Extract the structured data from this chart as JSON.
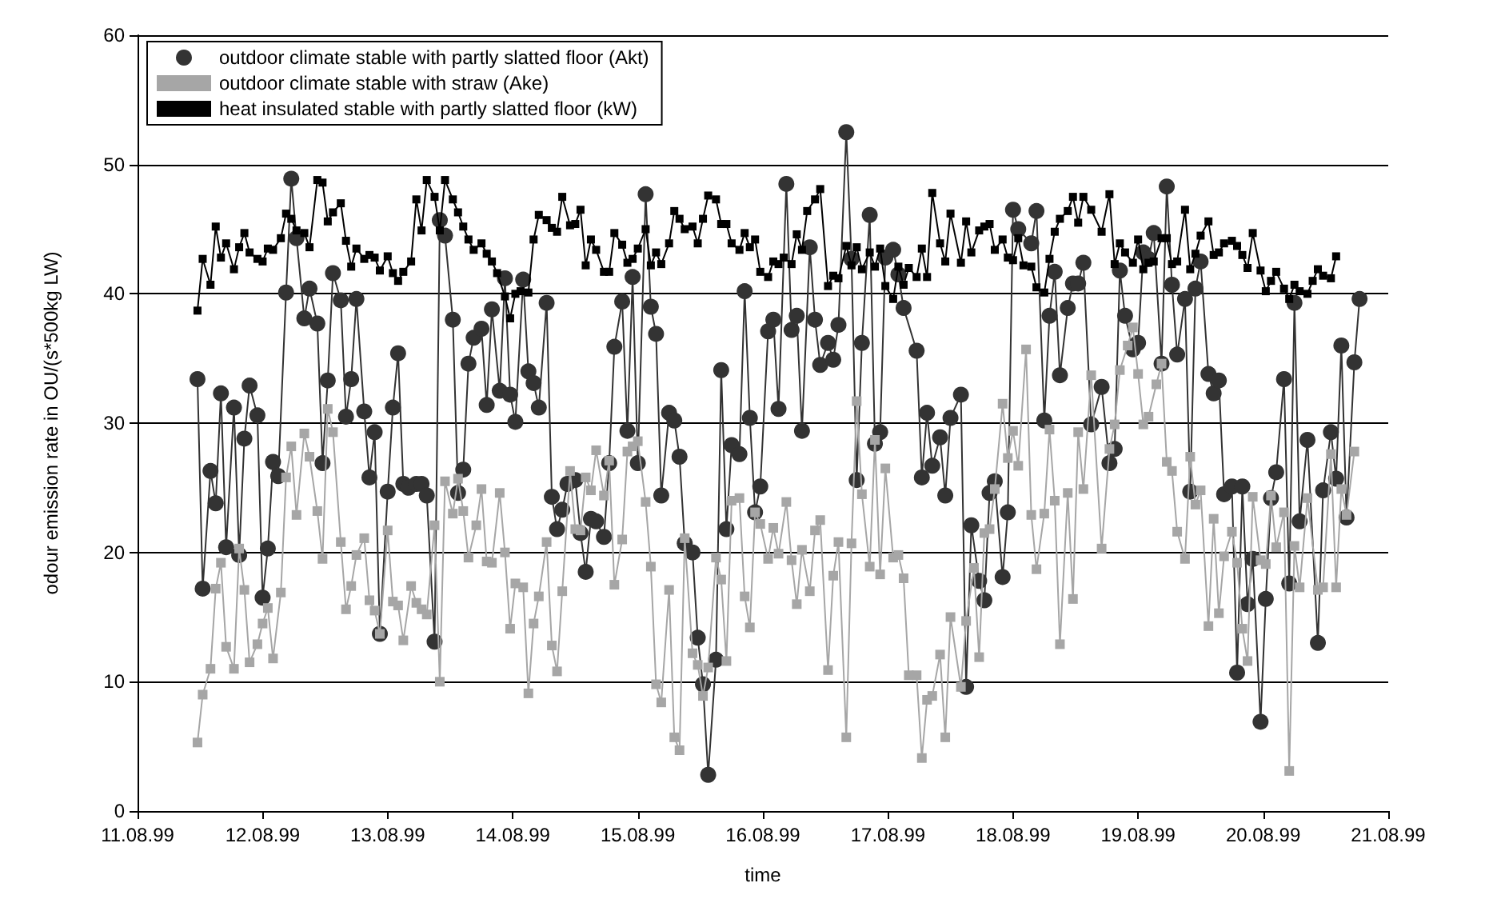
{
  "chart_data": {
    "type": "line",
    "xlabel": "time",
    "ylabel": "odour emission rate in OU/(s*500kg LW)",
    "xlim": [
      "1999-08-11",
      "1999-08-21"
    ],
    "xticks": [
      {
        "value": "1999-08-11",
        "label": "11.08.99"
      },
      {
        "value": "1999-08-12",
        "label": "12.08.99"
      },
      {
        "value": "1999-08-13",
        "label": "13.08.99"
      },
      {
        "value": "1999-08-14",
        "label": "14.08.99"
      },
      {
        "value": "1999-08-15",
        "label": "15.08.99"
      },
      {
        "value": "1999-08-16",
        "label": "16.08.99"
      },
      {
        "value": "1999-08-17",
        "label": "17.08.99"
      },
      {
        "value": "1999-08-18",
        "label": "18.08.99"
      },
      {
        "value": "1999-08-19",
        "label": "19.08.99"
      },
      {
        "value": "1999-08-20",
        "label": "20.08.99"
      },
      {
        "value": "1999-08-21",
        "label": "21.08.99"
      }
    ],
    "ylim": [
      0,
      60
    ],
    "yticks": [
      0,
      10,
      20,
      30,
      40,
      50,
      60
    ],
    "grid": "y",
    "legend": "top left",
    "line_style": "solid",
    "series": [
      {
        "name": "outdoor climate stable with partly slatted floor (Akt)",
        "color": "#333333",
        "marker": "circle",
        "x": [
          "1999-08-11T11:30",
          "1999-08-11T12:30",
          "1999-08-11T14:00",
          "1999-08-11T15:00",
          "1999-08-11T16:00",
          "1999-08-11T17:00",
          "1999-08-11T18:30",
          "1999-08-11T19:30",
          "1999-08-11T20:30",
          "1999-08-11T21:30",
          "1999-08-11T23:00",
          "1999-08-12T00:00",
          "1999-08-12T01:00",
          "1999-08-12T02:00",
          "1999-08-12T03:00",
          "1999-08-12T04:30",
          "1999-08-12T05:30",
          "1999-08-12T06:30",
          "1999-08-12T08:00",
          "1999-08-12T09:00",
          "1999-08-12T10:30",
          "1999-08-12T11:30",
          "1999-08-12T12:30",
          "1999-08-12T13:30",
          "1999-08-12T15:00",
          "1999-08-12T16:00",
          "1999-08-12T17:00",
          "1999-08-12T18:00",
          "1999-08-12T19:30",
          "1999-08-12T20:30",
          "1999-08-12T21:30",
          "1999-08-12T22:30",
          "1999-08-13T00:00",
          "1999-08-13T01:00",
          "1999-08-13T02:00",
          "1999-08-13T03:00",
          "1999-08-13T04:00",
          "1999-08-13T05:30",
          "1999-08-13T06:30",
          "1999-08-13T07:30",
          "1999-08-13T09:00",
          "1999-08-13T10:00",
          "1999-08-13T11:00",
          "1999-08-13T12:30",
          "1999-08-13T13:30",
          "1999-08-13T14:30",
          "1999-08-13T15:30",
          "1999-08-13T16:30",
          "1999-08-13T18:00",
          "1999-08-13T19:00",
          "1999-08-13T20:00",
          "1999-08-13T21:30",
          "1999-08-13T22:30",
          "1999-08-13T23:30",
          "1999-08-14T00:30",
          "1999-08-14T02:00",
          "1999-08-14T03:00",
          "1999-08-14T04:00",
          "1999-08-14T05:00",
          "1999-08-14T06:30",
          "1999-08-14T07:30",
          "1999-08-14T08:30",
          "1999-08-14T09:30",
          "1999-08-14T10:30",
          "1999-08-14T12:00",
          "1999-08-14T13:00",
          "1999-08-14T14:00",
          "1999-08-14T15:00",
          "1999-08-14T16:00",
          "1999-08-14T17:30",
          "1999-08-14T18:30",
          "1999-08-14T19:30",
          "1999-08-14T21:00",
          "1999-08-14T22:00",
          "1999-08-14T23:00",
          "1999-08-15T00:00",
          "1999-08-15T01:30",
          "1999-08-15T02:30",
          "1999-08-15T03:30",
          "1999-08-15T04:30",
          "1999-08-15T06:00",
          "1999-08-15T07:00",
          "1999-08-15T08:00",
          "1999-08-15T09:00",
          "1999-08-15T10:30",
          "1999-08-15T11:30",
          "1999-08-15T12:30",
          "1999-08-15T13:30",
          "1999-08-15T15:00",
          "1999-08-15T16:00",
          "1999-08-15T17:00",
          "1999-08-15T18:00",
          "1999-08-15T19:30",
          "1999-08-15T20:30",
          "1999-08-15T21:30",
          "1999-08-15T22:30",
          "1999-08-15T23:30",
          "1999-08-16T01:00",
          "1999-08-16T02:00",
          "1999-08-16T03:00",
          "1999-08-16T04:30",
          "1999-08-16T05:30",
          "1999-08-16T06:30",
          "1999-08-16T07:30",
          "1999-08-16T09:00",
          "1999-08-16T10:00",
          "1999-08-16T11:00",
          "1999-08-16T12:30",
          "1999-08-16T13:30",
          "1999-08-16T14:30",
          "1999-08-16T16:00",
          "1999-08-16T17:00",
          "1999-08-16T18:00",
          "1999-08-16T19:00",
          "1999-08-16T20:30",
          "1999-08-16T21:30",
          "1999-08-16T22:30",
          "1999-08-16T23:30",
          "1999-08-17T01:00",
          "1999-08-17T02:00",
          "1999-08-17T03:00",
          "1999-08-17T05:30",
          "1999-08-17T06:30",
          "1999-08-17T07:30",
          "1999-08-17T08:30",
          "1999-08-17T10:00",
          "1999-08-17T11:00",
          "1999-08-17T12:00",
          "1999-08-17T14:00",
          "1999-08-17T15:00",
          "1999-08-17T16:00",
          "1999-08-17T17:30",
          "1999-08-17T18:30",
          "1999-08-17T19:30",
          "1999-08-17T20:30",
          "1999-08-17T22:00",
          "1999-08-17T23:00",
          "1999-08-18T00:00",
          "1999-08-18T01:00",
          "1999-08-18T03:30",
          "1999-08-18T04:30",
          "1999-08-18T06:00",
          "1999-08-18T07:00",
          "1999-08-18T08:00",
          "1999-08-18T09:00",
          "1999-08-18T10:30",
          "1999-08-18T11:30",
          "1999-08-18T12:30",
          "1999-08-18T13:30",
          "1999-08-18T15:00",
          "1999-08-18T17:00",
          "1999-08-18T18:30",
          "1999-08-18T19:30",
          "1999-08-18T20:30",
          "1999-08-18T21:30",
          "1999-08-18T23:00",
          "1999-08-19T00:00",
          "1999-08-19T01:00",
          "1999-08-19T02:00",
          "1999-08-19T03:00",
          "1999-08-19T04:30",
          "1999-08-19T05:30",
          "1999-08-19T06:30",
          "1999-08-19T07:30",
          "1999-08-19T09:00",
          "1999-08-19T10:00",
          "1999-08-19T11:00",
          "1999-08-19T12:00",
          "1999-08-19T13:30",
          "1999-08-19T14:30",
          "1999-08-19T15:30",
          "1999-08-19T16:30",
          "1999-08-19T18:00",
          "1999-08-19T19:00",
          "1999-08-19T20:00",
          "1999-08-19T21:00",
          "1999-08-19T22:00",
          "1999-08-19T23:30",
          "1999-08-20T00:30",
          "1999-08-20T01:30",
          "1999-08-20T02:30",
          "1999-08-20T04:00",
          "1999-08-20T05:00",
          "1999-08-20T06:00",
          "1999-08-20T07:00",
          "1999-08-20T08:30",
          "1999-08-20T10:30",
          "1999-08-20T11:30",
          "1999-08-20T13:00",
          "1999-08-20T14:00",
          "1999-08-20T15:00",
          "1999-08-20T16:00",
          "1999-08-20T17:30",
          "1999-08-20T18:30"
        ],
        "values": [
          33.4,
          17.2,
          26.3,
          23.8,
          32.3,
          20.4,
          31.2,
          19.8,
          28.8,
          32.9,
          30.6,
          16.5,
          20.3,
          27.0,
          25.9,
          40.1,
          48.9,
          44.3,
          38.1,
          40.4,
          37.7,
          26.9,
          33.3,
          41.6,
          39.5,
          30.5,
          33.4,
          39.6,
          30.9,
          25.8,
          29.3,
          13.7,
          24.7,
          31.2,
          35.4,
          25.3,
          25.0,
          25.3,
          25.3,
          24.4,
          13.1,
          45.7,
          44.5,
          38.0,
          24.6,
          26.4,
          34.6,
          36.6,
          37.3,
          31.4,
          38.8,
          32.5,
          41.2,
          32.2,
          30.1,
          41.1,
          34.0,
          33.1,
          31.2,
          39.3,
          24.3,
          21.8,
          23.3,
          25.3,
          25.6,
          21.5,
          18.5,
          22.6,
          22.4,
          21.2,
          26.9,
          35.9,
          39.4,
          29.4,
          41.3,
          26.9,
          47.7,
          39.0,
          36.9,
          24.4,
          30.8,
          30.2,
          27.4,
          20.7,
          20.0,
          13.4,
          9.8,
          2.8,
          11.7,
          34.1,
          21.8,
          28.3,
          27.6,
          40.2,
          30.4,
          23.1,
          25.1,
          37.1,
          38.0,
          31.1,
          48.5,
          37.2,
          38.3,
          29.4,
          43.6,
          38.0,
          34.5,
          36.2,
          34.9,
          37.6,
          52.5,
          42.7,
          25.6,
          36.2,
          46.1,
          28.4,
          29.3,
          42.8,
          43.4,
          41.5,
          38.9,
          35.6,
          25.8,
          30.8,
          26.7,
          28.9,
          24.4,
          30.4,
          32.2,
          9.6,
          22.1,
          17.8,
          16.3,
          24.6,
          25.5,
          18.1,
          23.1,
          46.5,
          45.0,
          43.9,
          46.4,
          30.2,
          38.3,
          41.7,
          33.7,
          38.9,
          40.8,
          40.8,
          42.4,
          29.9,
          32.8,
          26.9,
          28.0,
          41.8,
          38.3,
          35.7,
          36.2,
          43.2,
          42.7,
          44.7,
          34.6,
          48.3,
          40.7,
          35.3,
          39.6,
          24.7,
          40.4,
          42.5,
          33.8,
          32.3,
          33.3,
          24.5,
          25.1,
          10.7,
          25.1,
          16.0,
          19.5,
          6.9,
          16.4,
          24.2,
          26.2,
          33.4,
          17.6,
          39.3,
          22.4,
          28.7,
          13.0,
          24.8,
          29.3,
          25.7,
          36.0,
          22.7,
          34.7,
          39.6
        ]
      },
      {
        "name": "outdoor climate stable with straw (Ake)",
        "color": "#a6a6a6",
        "marker": "square",
        "x": [
          "1999-08-11T11:30",
          "1999-08-11T12:30",
          "1999-08-11T14:00",
          "1999-08-11T15:00",
          "1999-08-11T16:00",
          "1999-08-11T17:00",
          "1999-08-11T18:30",
          "1999-08-11T19:30",
          "1999-08-11T20:30",
          "1999-08-11T21:30",
          "1999-08-11T23:00",
          "1999-08-12T00:00",
          "1999-08-12T01:00",
          "1999-08-12T02:00",
          "1999-08-12T03:30",
          "1999-08-12T04:30",
          "1999-08-12T05:30",
          "1999-08-12T06:30",
          "1999-08-12T08:00",
          "1999-08-12T09:00",
          "1999-08-12T10:30",
          "1999-08-12T11:30",
          "1999-08-12T12:30",
          "1999-08-12T13:30",
          "1999-08-12T15:00",
          "1999-08-12T16:00",
          "1999-08-12T17:00",
          "1999-08-12T18:00",
          "1999-08-12T19:30",
          "1999-08-12T20:30",
          "1999-08-12T21:30",
          "1999-08-12T22:30",
          "1999-08-13T00:00",
          "1999-08-13T01:00",
          "1999-08-13T02:00",
          "1999-08-13T03:00",
          "1999-08-13T04:30",
          "1999-08-13T05:30",
          "1999-08-13T06:30",
          "1999-08-13T07:30",
          "1999-08-13T09:00",
          "1999-08-13T10:00",
          "1999-08-13T11:00",
          "1999-08-13T12:30",
          "1999-08-13T13:30",
          "1999-08-13T14:30",
          "1999-08-13T15:30",
          "1999-08-13T17:00",
          "1999-08-13T18:00",
          "1999-08-13T19:00",
          "1999-08-13T20:00",
          "1999-08-13T21:30",
          "1999-08-13T22:30",
          "1999-08-13T23:30",
          "1999-08-14T00:30",
          "1999-08-14T02:00",
          "1999-08-14T03:00",
          "1999-08-14T04:00",
          "1999-08-14T05:00",
          "1999-08-14T06:30",
          "1999-08-14T07:30",
          "1999-08-14T08:30",
          "1999-08-14T09:30",
          "1999-08-14T11:00",
          "1999-08-14T12:00",
          "1999-08-14T13:00",
          "1999-08-14T14:00",
          "1999-08-14T15:00",
          "1999-08-14T16:00",
          "1999-08-14T17:30",
          "1999-08-14T18:30",
          "1999-08-14T19:30",
          "1999-08-14T21:00",
          "1999-08-14T22:00",
          "1999-08-14T23:00",
          "1999-08-15T00:00",
          "1999-08-15T01:30",
          "1999-08-15T02:30",
          "1999-08-15T03:30",
          "1999-08-15T04:30",
          "1999-08-15T06:00",
          "1999-08-15T07:00",
          "1999-08-15T08:00",
          "1999-08-15T09:00",
          "1999-08-15T10:30",
          "1999-08-15T11:30",
          "1999-08-15T12:30",
          "1999-08-15T13:30",
          "1999-08-15T15:00",
          "1999-08-15T16:00",
          "1999-08-15T17:00",
          "1999-08-15T18:00",
          "1999-08-15T19:30",
          "1999-08-15T20:30",
          "1999-08-15T21:30",
          "1999-08-15T22:30",
          "1999-08-15T23:30",
          "1999-08-16T01:00",
          "1999-08-16T02:00",
          "1999-08-16T03:00",
          "1999-08-16T04:30",
          "1999-08-16T05:30",
          "1999-08-16T06:30",
          "1999-08-16T07:30",
          "1999-08-16T09:00",
          "1999-08-16T10:00",
          "1999-08-16T11:00",
          "1999-08-16T12:30",
          "1999-08-16T13:30",
          "1999-08-16T14:30",
          "1999-08-16T16:00",
          "1999-08-16T17:00",
          "1999-08-16T18:00",
          "1999-08-16T19:00",
          "1999-08-16T20:30",
          "1999-08-16T21:30",
          "1999-08-16T22:30",
          "1999-08-16T23:30",
          "1999-08-17T01:00",
          "1999-08-17T02:00",
          "1999-08-17T03:00",
          "1999-08-17T04:00",
          "1999-08-17T05:30",
          "1999-08-17T06:30",
          "1999-08-17T07:30",
          "1999-08-17T08:30",
          "1999-08-17T10:00",
          "1999-08-17T11:00",
          "1999-08-17T12:00",
          "1999-08-17T14:00",
          "1999-08-17T15:00",
          "1999-08-17T16:30",
          "1999-08-17T17:30",
          "1999-08-17T18:30",
          "1999-08-17T19:30",
          "1999-08-17T20:30",
          "1999-08-17T22:00",
          "1999-08-17T23:00",
          "1999-08-18T00:00",
          "1999-08-18T01:00",
          "1999-08-18T02:30",
          "1999-08-18T03:30",
          "1999-08-18T04:30",
          "1999-08-18T06:00",
          "1999-08-18T07:00",
          "1999-08-18T08:00",
          "1999-08-18T09:00",
          "1999-08-18T10:30",
          "1999-08-18T11:30",
          "1999-08-18T12:30",
          "1999-08-18T13:30",
          "1999-08-18T15:00",
          "1999-08-18T17:00",
          "1999-08-18T18:30",
          "1999-08-18T19:30",
          "1999-08-18T20:30",
          "1999-08-18T22:00",
          "1999-08-18T23:00",
          "1999-08-19T00:00",
          "1999-08-19T01:00",
          "1999-08-19T02:00",
          "1999-08-19T03:30",
          "1999-08-19T04:30",
          "1999-08-19T05:30",
          "1999-08-19T06:30",
          "1999-08-19T07:30",
          "1999-08-19T09:00",
          "1999-08-19T10:00",
          "1999-08-19T11:00",
          "1999-08-19T12:00",
          "1999-08-19T13:30",
          "1999-08-19T14:30",
          "1999-08-19T15:30",
          "1999-08-19T16:30",
          "1999-08-19T18:00",
          "1999-08-19T19:00",
          "1999-08-19T20:00",
          "1999-08-19T21:00",
          "1999-08-19T22:00",
          "1999-08-19T23:30",
          "1999-08-20T00:30",
          "1999-08-20T01:30",
          "1999-08-20T02:30",
          "1999-08-20T04:00",
          "1999-08-20T05:00",
          "1999-08-20T06:00",
          "1999-08-20T07:00",
          "1999-08-20T08:30",
          "1999-08-20T10:30",
          "1999-08-20T11:30",
          "1999-08-20T13:00",
          "1999-08-20T14:00",
          "1999-08-20T15:00",
          "1999-08-20T16:00",
          "1999-08-20T17:30"
        ],
        "values": [
          5.3,
          9.0,
          11.0,
          17.2,
          19.2,
          12.7,
          11.0,
          20.3,
          17.1,
          11.5,
          12.9,
          14.5,
          15.7,
          11.8,
          16.9,
          25.8,
          28.2,
          22.9,
          29.2,
          27.4,
          23.2,
          19.5,
          31.1,
          29.3,
          20.8,
          15.6,
          17.4,
          19.8,
          21.1,
          16.3,
          15.5,
          13.7,
          21.7,
          16.2,
          15.9,
          13.2,
          17.4,
          16.1,
          15.6,
          15.2,
          22.1,
          10.0,
          25.5,
          23.0,
          25.7,
          23.2,
          19.6,
          22.1,
          24.9,
          19.3,
          19.2,
          24.6,
          20.0,
          14.1,
          17.6,
          17.3,
          9.1,
          14.5,
          16.6,
          20.8,
          12.8,
          10.8,
          17.0,
          26.3,
          21.8,
          21.7,
          25.8,
          24.8,
          27.9,
          24.4,
          27.1,
          17.5,
          21.0,
          27.8,
          28.2,
          28.6,
          23.9,
          18.9,
          9.8,
          8.4,
          17.1,
          5.7,
          4.7,
          21.1,
          12.2,
          11.3,
          8.9,
          11.1,
          19.6,
          17.9,
          11.6,
          24.0,
          24.2,
          16.6,
          14.2,
          23.1,
          22.2,
          19.5,
          21.9,
          19.9,
          23.9,
          19.4,
          16.0,
          20.2,
          17.0,
          21.7,
          22.5,
          10.9,
          18.2,
          20.8,
          5.7,
          20.7,
          31.7,
          24.5,
          18.9,
          28.7,
          18.3,
          26.5,
          19.6,
          19.8,
          18.0,
          10.5,
          10.5,
          4.1,
          8.6,
          8.9,
          12.1,
          5.7,
          15.0,
          9.6,
          14.7,
          18.8,
          11.9,
          21.5,
          21.8,
          24.9,
          31.5,
          27.3,
          29.4,
          26.7,
          35.7,
          22.9,
          18.7,
          23.0,
          29.5,
          24.0,
          12.9,
          24.6,
          16.4,
          29.3,
          24.9,
          33.7,
          20.3,
          28.0,
          29.9,
          34.1,
          36.0,
          37.4,
          33.8,
          29.9,
          30.5,
          33.0,
          34.6,
          27.0,
          26.3,
          21.6,
          19.5,
          27.4,
          23.7,
          24.8,
          14.3,
          22.6,
          15.3,
          19.7,
          21.6,
          19.2,
          14.1,
          11.6,
          24.3,
          19.4,
          19.1,
          24.4,
          20.4,
          23.1,
          3.1,
          20.5,
          17.3,
          24.2,
          17.1,
          17.3,
          27.6,
          17.3,
          24.9,
          22.9,
          27.8
        ]
      },
      {
        "name": "heat insulated stable with partly slatted floor (kW)",
        "color": "#000000",
        "marker": "square",
        "x": [
          "1999-08-11T11:30",
          "1999-08-11T12:30",
          "1999-08-11T14:00",
          "1999-08-11T15:00",
          "1999-08-11T16:00",
          "1999-08-11T17:00",
          "1999-08-11T18:30",
          "1999-08-11T19:30",
          "1999-08-11T20:30",
          "1999-08-11T21:30",
          "1999-08-11T23:00",
          "1999-08-12T00:00",
          "1999-08-12T01:00",
          "1999-08-12T02:00",
          "1999-08-12T03:30",
          "1999-08-12T04:30",
          "1999-08-12T05:30",
          "1999-08-12T06:30",
          "1999-08-12T08:00",
          "1999-08-12T09:00",
          "1999-08-12T10:30",
          "1999-08-12T11:30",
          "1999-08-12T12:30",
          "1999-08-12T13:30",
          "1999-08-12T15:00",
          "1999-08-12T16:00",
          "1999-08-12T17:00",
          "1999-08-12T18:00",
          "1999-08-12T19:30",
          "1999-08-12T20:30",
          "1999-08-12T21:30",
          "1999-08-12T22:30",
          "1999-08-13T00:00",
          "1999-08-13T01:00",
          "1999-08-13T02:00",
          "1999-08-13T03:00",
          "1999-08-13T04:30",
          "1999-08-13T05:30",
          "1999-08-13T06:30",
          "1999-08-13T07:30",
          "1999-08-13T09:00",
          "1999-08-13T10:00",
          "1999-08-13T11:00",
          "1999-08-13T12:30",
          "1999-08-13T13:30",
          "1999-08-13T14:30",
          "1999-08-13T15:30",
          "1999-08-13T16:30",
          "1999-08-13T18:00",
          "1999-08-13T19:00",
          "1999-08-13T20:00",
          "1999-08-13T21:00",
          "1999-08-13T22:30",
          "1999-08-13T23:30",
          "1999-08-14T00:30",
          "1999-08-14T01:30",
          "1999-08-14T03:00",
          "1999-08-14T04:00",
          "1999-08-14T05:00",
          "1999-08-14T06:30",
          "1999-08-14T07:30",
          "1999-08-14T08:30",
          "1999-08-14T09:30",
          "1999-08-14T11:00",
          "1999-08-14T12:00",
          "1999-08-14T13:00",
          "1999-08-14T14:00",
          "1999-08-14T15:00",
          "1999-08-14T16:00",
          "1999-08-14T17:30",
          "1999-08-14T18:30",
          "1999-08-14T19:30",
          "1999-08-14T21:00",
          "1999-08-14T22:00",
          "1999-08-14T23:00",
          "1999-08-15T00:00",
          "1999-08-15T01:30",
          "1999-08-15T02:30",
          "1999-08-15T03:30",
          "1999-08-15T04:30",
          "1999-08-15T06:00",
          "1999-08-15T07:00",
          "1999-08-15T08:00",
          "1999-08-15T09:00",
          "1999-08-15T10:30",
          "1999-08-15T11:30",
          "1999-08-15T12:30",
          "1999-08-15T13:30",
          "1999-08-15T15:00",
          "1999-08-15T16:00",
          "1999-08-15T17:00",
          "1999-08-15T18:00",
          "1999-08-15T19:30",
          "1999-08-15T20:30",
          "1999-08-15T21:30",
          "1999-08-15T22:30",
          "1999-08-15T23:30",
          "1999-08-16T01:00",
          "1999-08-16T02:00",
          "1999-08-16T03:00",
          "1999-08-16T04:00",
          "1999-08-16T05:30",
          "1999-08-16T06:30",
          "1999-08-16T07:30",
          "1999-08-16T08:30",
          "1999-08-16T10:00",
          "1999-08-16T11:00",
          "1999-08-16T12:30",
          "1999-08-16T13:30",
          "1999-08-16T14:30",
          "1999-08-16T16:00",
          "1999-08-16T17:00",
          "1999-08-16T18:00",
          "1999-08-16T19:00",
          "1999-08-16T20:30",
          "1999-08-16T21:30",
          "1999-08-16T22:30",
          "1999-08-16T23:30",
          "1999-08-17T01:00",
          "1999-08-17T02:00",
          "1999-08-17T03:00",
          "1999-08-17T04:00",
          "1999-08-17T05:30",
          "1999-08-17T06:30",
          "1999-08-17T07:30",
          "1999-08-17T08:30",
          "1999-08-17T10:00",
          "1999-08-17T11:00",
          "1999-08-17T12:00",
          "1999-08-17T14:00",
          "1999-08-17T15:00",
          "1999-08-17T16:00",
          "1999-08-17T17:30",
          "1999-08-17T18:30",
          "1999-08-17T19:30",
          "1999-08-17T20:30",
          "1999-08-17T22:00",
          "1999-08-17T23:00",
          "1999-08-18T00:00",
          "1999-08-18T01:00",
          "1999-08-18T02:00",
          "1999-08-18T03:30",
          "1999-08-18T04:30",
          "1999-08-18T06:00",
          "1999-08-18T07:00",
          "1999-08-18T08:00",
          "1999-08-18T09:00",
          "1999-08-18T10:30",
          "1999-08-18T11:30",
          "1999-08-18T12:30",
          "1999-08-18T13:30",
          "1999-08-18T15:00",
          "1999-08-18T17:00",
          "1999-08-18T18:30",
          "1999-08-18T19:30",
          "1999-08-18T20:30",
          "1999-08-18T21:30",
          "1999-08-18T23:00",
          "1999-08-19T00:00",
          "1999-08-19T01:00",
          "1999-08-19T02:00",
          "1999-08-19T03:00",
          "1999-08-19T04:30",
          "1999-08-19T05:30",
          "1999-08-19T06:30",
          "1999-08-19T07:30",
          "1999-08-19T09:00",
          "1999-08-19T10:00",
          "1999-08-19T11:00",
          "1999-08-19T12:00",
          "1999-08-19T13:30",
          "1999-08-19T14:30",
          "1999-08-19T15:30",
          "1999-08-19T16:30",
          "1999-08-19T18:00",
          "1999-08-19T19:00",
          "1999-08-19T20:00",
          "1999-08-19T21:00",
          "1999-08-19T22:00",
          "1999-08-19T23:30",
          "1999-08-20T00:30",
          "1999-08-20T01:30",
          "1999-08-20T02:30",
          "1999-08-20T04:00",
          "1999-08-20T05:00",
          "1999-08-20T06:00",
          "1999-08-20T07:00",
          "1999-08-20T08:30",
          "1999-08-20T09:30",
          "1999-08-20T10:30",
          "1999-08-20T11:30",
          "1999-08-20T13:00",
          "1999-08-20T14:00"
        ],
        "values": [
          38.7,
          42.7,
          40.7,
          45.2,
          42.8,
          43.9,
          41.9,
          43.6,
          44.7,
          43.2,
          42.7,
          42.5,
          43.5,
          43.4,
          44.3,
          46.2,
          45.8,
          44.9,
          44.7,
          43.6,
          48.8,
          48.6,
          45.6,
          46.3,
          47.0,
          44.1,
          42.1,
          43.5,
          42.7,
          43.0,
          42.8,
          41.8,
          42.9,
          41.6,
          41.0,
          41.7,
          42.5,
          47.3,
          44.9,
          48.8,
          47.5,
          44.9,
          48.8,
          47.3,
          46.3,
          45.2,
          44.2,
          43.4,
          43.9,
          43.1,
          42.5,
          41.6,
          39.8,
          38.1,
          40.0,
          40.2,
          40.1,
          44.2,
          46.1,
          45.7,
          45.1,
          44.8,
          47.5,
          45.3,
          45.4,
          46.5,
          42.2,
          44.2,
          43.4,
          41.7,
          41.7,
          44.7,
          43.8,
          42.4,
          42.7,
          43.5,
          45.0,
          42.2,
          43.2,
          42.3,
          43.9,
          46.4,
          45.8,
          45.0,
          45.2,
          43.9,
          45.8,
          47.6,
          47.3,
          45.4,
          45.4,
          43.9,
          43.4,
          44.7,
          43.6,
          44.2,
          41.7,
          41.3,
          42.5,
          42.3,
          42.8,
          42.3,
          44.6,
          43.4,
          46.4,
          47.3,
          48.1,
          40.6,
          41.4,
          41.2,
          43.7,
          42.2,
          43.6,
          41.9,
          43.2,
          42.1,
          43.5,
          40.6,
          39.6,
          42.1,
          40.7,
          42.0,
          41.3,
          43.5,
          41.3,
          47.8,
          43.9,
          42.5,
          46.2,
          42.4,
          45.6,
          43.2,
          44.9,
          45.2,
          45.4,
          43.4,
          44.2,
          42.8,
          42.6,
          44.3,
          42.2,
          42.1,
          40.5,
          40.1,
          42.7,
          44.8,
          45.8,
          46.4,
          47.5,
          45.5,
          47.5,
          46.5,
          44.8,
          47.7,
          42.3,
          43.9,
          43.2,
          42.4,
          44.2,
          41.9,
          42.4,
          42.5,
          44.3,
          44.3,
          42.3,
          42.5,
          46.5,
          41.9,
          43.1,
          44.5,
          45.6,
          43.0,
          43.2,
          43.9,
          44.1,
          43.7,
          43.0,
          42.0,
          44.7,
          41.8,
          40.2,
          41.0,
          41.7,
          40.4,
          39.6,
          40.7,
          40.2,
          40.0,
          41.0,
          41.9,
          41.4,
          41.2,
          42.9
        ]
      }
    ]
  }
}
